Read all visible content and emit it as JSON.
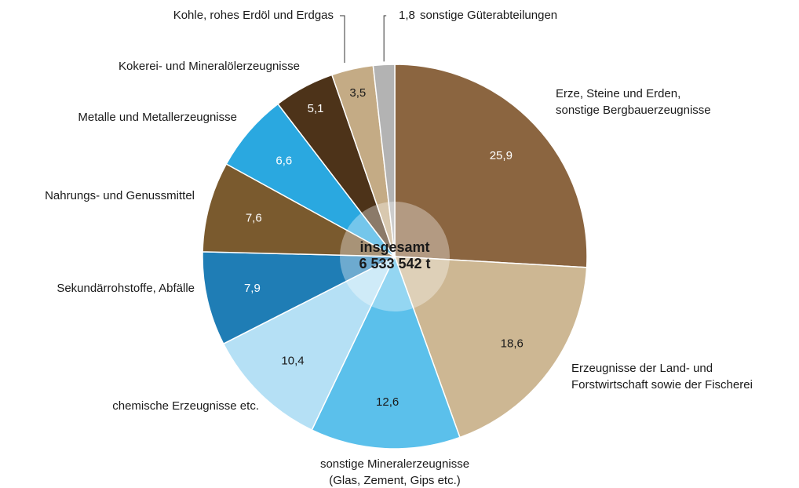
{
  "chart_data": {
    "type": "pie",
    "categories": [
      [
        "Erze, Steine und Erden,",
        "sonstige Bergbauerzeugnisse"
      ],
      [
        "Erzeugnisse der Land- und",
        "Forstwirtschaft sowie der Fischerei"
      ],
      [
        "sonstige Mineralerzeugnisse",
        "(Glas, Zement, Gips etc.)"
      ],
      [
        "chemische Erzeugnisse etc."
      ],
      [
        "Sekundärrohstoffe, Abfälle"
      ],
      [
        "Nahrungs- und Genussmittel"
      ],
      [
        "Metalle und Metallerzeugnisse"
      ],
      [
        "Kokerei- und Mineralölerzeugnisse"
      ],
      [
        "Kohle, rohes Erdöl und Erdgas"
      ],
      [
        "sonstige Güterabteilungen"
      ]
    ],
    "values": [
      25.9,
      18.6,
      12.6,
      10.4,
      7.9,
      7.6,
      6.6,
      5.1,
      3.5,
      1.8
    ],
    "value_labels": [
      "25,9",
      "18,6",
      "12,6",
      "10,4",
      "7,9",
      "7,6",
      "6,6",
      "5,1",
      "3,5",
      "1,8"
    ],
    "colors": [
      "#8b6540",
      "#cdb793",
      "#5bc0eb",
      "#b5e0f5",
      "#1f7db5",
      "#7a5a2e",
      "#2aa8e0",
      "#4d3319",
      "#c4ab85",
      "#b3b3b3"
    ],
    "center_label": [
      "insgesamt",
      "6 533 542 t"
    ]
  }
}
